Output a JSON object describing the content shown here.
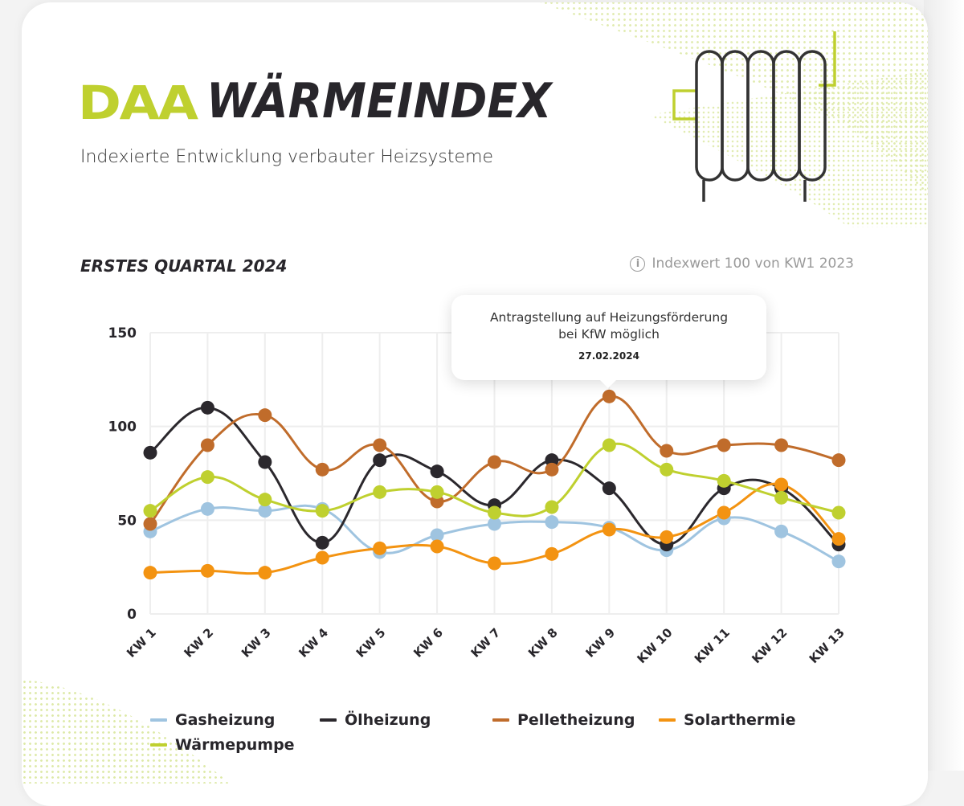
{
  "header": {
    "logo_text": "DAA",
    "title": "WÄRMEINDEX",
    "subtitle": "Indexierte Entwicklung verbauter Heizsysteme",
    "decoration_icon": "radiator-icon"
  },
  "section": {
    "title": "ERSTES QUARTAL 2024",
    "index_note": "Indexwert 100 von KW1 2023",
    "info_icon": "info-icon"
  },
  "annotation": {
    "text_line1": "Antragstellung auf Heizungsförderung",
    "text_line2": "bei KfW möglich",
    "date": "27.02.2024",
    "anchor_category": "KW 9",
    "anchor_series": "Pelletheizung"
  },
  "colors": {
    "brand_green": "#bfd02f",
    "text_dark": "#28262b",
    "grid": "#eeeeee"
  },
  "chart_data": {
    "type": "line",
    "title": "ERSTES QUARTAL 2024",
    "xlabel": "",
    "ylabel": "",
    "ylim": [
      0,
      150
    ],
    "yticks": [
      0,
      50,
      100,
      150
    ],
    "grid": true,
    "smooth": true,
    "legend_position": "bottom",
    "categories": [
      "KW 1",
      "KW 2",
      "KW 3",
      "KW 4",
      "KW 5",
      "KW 6",
      "KW 7",
      "KW 8",
      "KW 9",
      "KW 10",
      "KW 11",
      "KW 12",
      "KW 13"
    ],
    "series": [
      {
        "name": "Gasheizung",
        "color": "#9fc4e0",
        "values": [
          44,
          56,
          55,
          56,
          33,
          42,
          48,
          49,
          46,
          34,
          51,
          44,
          28
        ]
      },
      {
        "name": "Ölheizung",
        "color": "#2b282d",
        "values": [
          86,
          110,
          81,
          38,
          82,
          76,
          58,
          82,
          67,
          37,
          67,
          67,
          37
        ]
      },
      {
        "name": "Pelletheizung",
        "color": "#c06c2b",
        "values": [
          48,
          90,
          106,
          77,
          90,
          60,
          81,
          77,
          116,
          87,
          90,
          90,
          82
        ]
      },
      {
        "name": "Solarthermie",
        "color": "#f39311",
        "values": [
          22,
          23,
          22,
          30,
          35,
          36,
          27,
          32,
          45,
          41,
          54,
          69,
          40
        ]
      },
      {
        "name": "Wärmepumpe",
        "color": "#bfd02f",
        "values": [
          55,
          73,
          61,
          55,
          65,
          65,
          54,
          57,
          90,
          77,
          71,
          62,
          54
        ]
      }
    ]
  }
}
